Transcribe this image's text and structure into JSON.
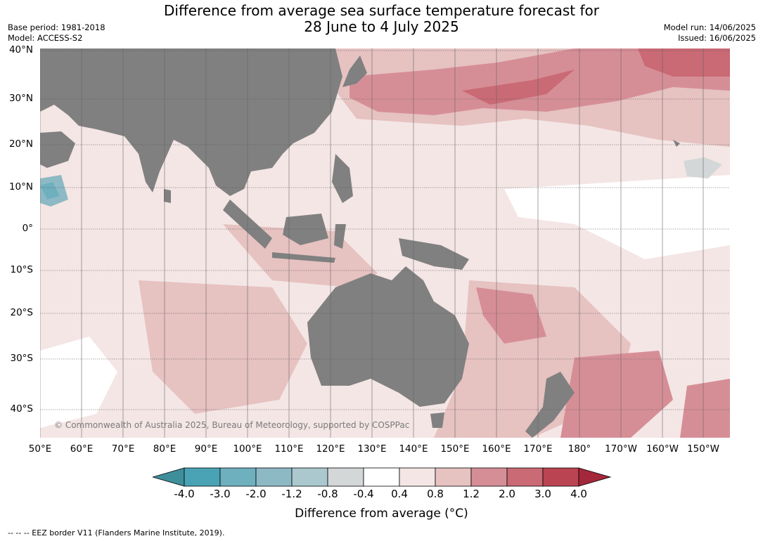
{
  "title_line1": "Difference from average sea surface temperature forecast for",
  "title_line2": "28 June to 4 July 2025",
  "base_period": "Base period: 1981-2018",
  "model": "Model: ACCESS-S2",
  "model_run": "Model run: 14/06/2025",
  "issued": "Issued: 16/06/2025",
  "copyright": "© Commonwealth of Australia 2025, Bureau of Meteorology, supported by COSPPac",
  "lat_labels": [
    "40°N",
    "30°N",
    "20°N",
    "10°N",
    "0°",
    "10°S",
    "20°S",
    "30°S",
    "40°S"
  ],
  "lon_labels": [
    "50°E",
    "60°E",
    "70°E",
    "80°E",
    "90°E",
    "100°E",
    "110°E",
    "120°E",
    "130°E",
    "140°E",
    "150°E",
    "160°E",
    "170°E",
    "180°",
    "170°W",
    "160°W",
    "150°W"
  ],
  "colorbar": {
    "ticks": [
      "-4.0",
      "-3.0",
      "-2.0",
      "-1.2",
      "-0.8",
      "-0.4",
      "0.4",
      "0.8",
      "1.2",
      "2.0",
      "3.0",
      "4.0"
    ],
    "colors": [
      "#3f8f9b",
      "#4aa3b5",
      "#6fb0bf",
      "#8db9c5",
      "#acc8cf",
      "#d3d7d8",
      "#ffffff",
      "#f4e6e5",
      "#e6c2c1",
      "#d68e96",
      "#c96a75",
      "#bb4452",
      "#a3283a"
    ],
    "label": "Difference from average (°C)"
  },
  "land_color": "#808080",
  "footer": "--  --  -- EEZ border V11 (Flanders Marine Institute, 2019)."
}
